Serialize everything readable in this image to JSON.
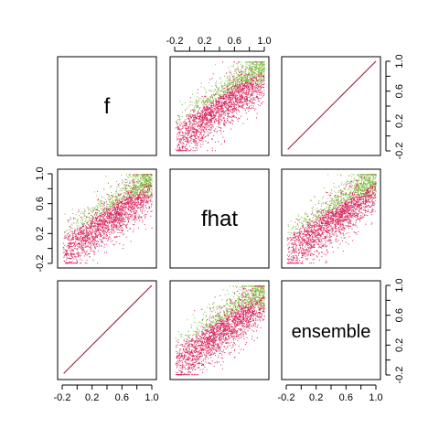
{
  "chart_data": {
    "type": "scatter",
    "variables": [
      "f",
      "fhat",
      "ensemble"
    ],
    "axis_range": [
      -0.2,
      1.0
    ],
    "ticks": [
      -0.2,
      0.2,
      0.6,
      1.0
    ],
    "tick_labels": [
      "-0.2",
      "0.2",
      "0.6",
      "1.0"
    ],
    "intermediate_ticks": [
      0.0,
      0.4,
      0.8
    ],
    "diagonal_labels": [
      "f",
      "fhat",
      "ensemble"
    ],
    "colors": {
      "primary": "#d6245a",
      "secondary": "#7ec13f",
      "frame": "#000000",
      "identity_line": "#8b1a2b"
    },
    "pairs": [
      {
        "x": "fhat",
        "y": "f",
        "relation": "noisy positive",
        "color_split": "green above red"
      },
      {
        "x": "ensemble",
        "y": "f",
        "relation": "identity"
      },
      {
        "x": "f",
        "y": "fhat",
        "relation": "noisy positive"
      },
      {
        "x": "ensemble",
        "y": "fhat",
        "relation": "noisy positive"
      },
      {
        "x": "f",
        "y": "ensemble",
        "relation": "identity"
      },
      {
        "x": "fhat",
        "y": "ensemble",
        "relation": "noisy positive"
      }
    ],
    "grid": false,
    "legend": "none"
  }
}
